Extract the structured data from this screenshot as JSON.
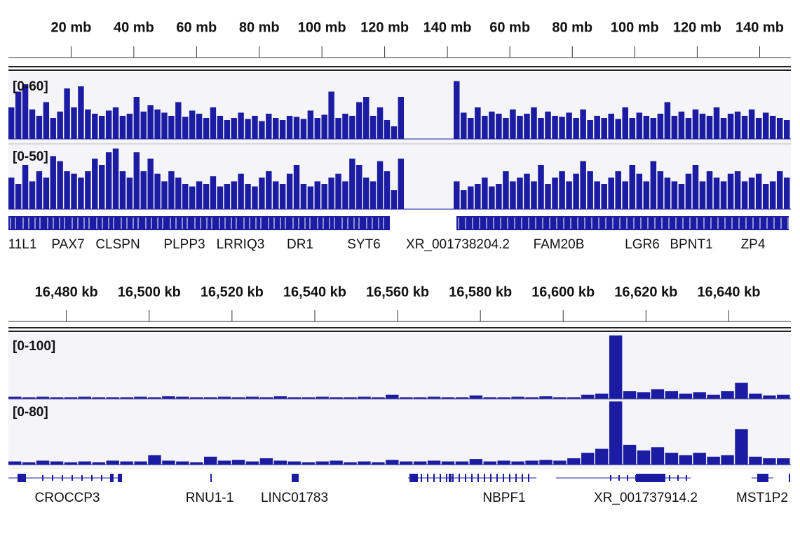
{
  "color": "#1c1ca3",
  "panels": [
    {
      "segments": [
        {
          "xlim": [
            0,
            142
          ],
          "xticks": [
            {
              "value": 20,
              "label": "20 mb"
            },
            {
              "value": 40,
              "label": "40 mb"
            },
            {
              "value": 60,
              "label": "60 mb"
            },
            {
              "value": 80,
              "label": "80 mb"
            },
            {
              "value": 100,
              "label": "100 mb"
            },
            {
              "value": 120,
              "label": "120 mb"
            },
            {
              "value": 140,
              "label": "140 mb"
            }
          ]
        },
        {
          "xlim": [
            42,
            150
          ],
          "xticks": [
            {
              "value": 60,
              "label": "60 mb"
            },
            {
              "value": 80,
              "label": "80 mb"
            },
            {
              "value": 100,
              "label": "100 mb"
            },
            {
              "value": 120,
              "label": "120 mb"
            },
            {
              "value": 140,
              "label": "140 mb"
            }
          ]
        }
      ],
      "tracks": [
        {
          "range_label": "[0-60]",
          "ylim": [
            0,
            60
          ],
          "values": [
            [
              30,
              45,
              52,
              28,
              22,
              35,
              20,
              26,
              48,
              30,
              50,
              28,
              24,
              22,
              27,
              30,
              22,
              24,
              40,
              26,
              32,
              28,
              25,
              22,
              35,
              21,
              27,
              24,
              20,
              30,
              22,
              18,
              20,
              25,
              19,
              22,
              17,
              24,
              20,
              18,
              22,
              21,
              19,
              27,
              20,
              23,
              45,
              20,
              24,
              22,
              35,
              40,
              22,
              30,
              18,
              12,
              40,
              0,
              0,
              0,
              0,
              0,
              0,
              0
            ],
            [
              55,
              25,
              20,
              30,
              22,
              26,
              24,
              20,
              28,
              22,
              24,
              30,
              20,
              26,
              22,
              21,
              25,
              20,
              28,
              18,
              22,
              20,
              24,
              19,
              30,
              20,
              25,
              22,
              20,
              24,
              35,
              22,
              26,
              20,
              28,
              24,
              22,
              30,
              20,
              24,
              26,
              22,
              28,
              20,
              25,
              22,
              20,
              18
            ]
          ]
        },
        {
          "range_label": "[0-50]",
          "ylim": [
            0,
            50
          ],
          "values": [
            [
              25,
              20,
              35,
              22,
              30,
              25,
              42,
              38,
              30,
              28,
              25,
              30,
              40,
              35,
              45,
              48,
              30,
              25,
              45,
              30,
              40,
              28,
              22,
              30,
              25,
              20,
              18,
              22,
              20,
              26,
              18,
              20,
              22,
              28,
              20,
              18,
              25,
              30,
              22,
              20,
              28,
              35,
              20,
              18,
              22,
              20,
              25,
              28,
              22,
              40,
              35,
              25,
              22,
              38,
              30,
              15,
              40,
              0,
              0,
              0,
              0,
              0,
              0,
              0
            ],
            [
              22,
              15,
              18,
              20,
              25,
              18,
              20,
              30,
              22,
              25,
              28,
              22,
              35,
              20,
              25,
              30,
              22,
              28,
              38,
              30,
              22,
              20,
              25,
              30,
              22,
              35,
              28,
              22,
              38,
              30,
              25,
              22,
              20,
              28,
              35,
              22,
              30,
              25,
              22,
              28,
              30,
              22,
              25,
              28,
              20,
              22,
              30,
              25
            ]
          ]
        }
      ],
      "genes": [
        "11L1",
        "PAX7",
        "CLSPN",
        "PLPP3",
        "LRRIQ3",
        "DR1",
        "SYT6",
        "XR_001738204.2",
        "FAM20B",
        "LGR6",
        "BPNT1",
        "ZP4"
      ]
    },
    {
      "segments": [
        {
          "xlim": [
            16466,
            16655
          ],
          "xticks": [
            {
              "value": 16480,
              "label": "16,480 kb"
            },
            {
              "value": 16500,
              "label": "16,500 kb"
            },
            {
              "value": 16520,
              "label": "16,520 kb"
            },
            {
              "value": 16540,
              "label": "16,540 kb"
            },
            {
              "value": 16560,
              "label": "16,560 kb"
            },
            {
              "value": 16580,
              "label": "16,580 kb"
            },
            {
              "value": 16600,
              "label": "16,600 kb"
            },
            {
              "value": 16620,
              "label": "16,620 kb"
            },
            {
              "value": 16640,
              "label": "16,640 kb"
            }
          ]
        }
      ],
      "tracks": [
        {
          "range_label": "[0-100]",
          "ylim": [
            0,
            100
          ],
          "values": [
            [
              3,
              2,
              3,
              2,
              2,
              3,
              2,
              2,
              2,
              3,
              2,
              4,
              3,
              2,
              2,
              3,
              2,
              3,
              2,
              4,
              2,
              2,
              3,
              2,
              2,
              3,
              2,
              6,
              2,
              2,
              3,
              2,
              2,
              5,
              2,
              2,
              3,
              2,
              4,
              2,
              2,
              6,
              8,
              100,
              12,
              10,
              15,
              12,
              8,
              10,
              6,
              12,
              25,
              8,
              5,
              6
            ]
          ]
        },
        {
          "range_label": "[0-80]",
          "ylim": [
            0,
            80
          ],
          "values": [
            [
              4,
              3,
              5,
              4,
              3,
              4,
              3,
              5,
              4,
              4,
              12,
              5,
              4,
              3,
              10,
              5,
              6,
              4,
              8,
              5,
              4,
              3,
              4,
              5,
              3,
              4,
              3,
              6,
              4,
              4,
              5,
              4,
              4,
              7,
              4,
              5,
              4,
              5,
              6,
              5,
              8,
              15,
              20,
              80,
              25,
              18,
              22,
              15,
              12,
              15,
              10,
              12,
              45,
              10,
              8,
              8
            ]
          ]
        }
      ],
      "genes": [
        "CROCCP3",
        "RNU1-1",
        "LINC01783",
        "NBPF1",
        "XR_001737914.2",
        "MST1P2"
      ]
    }
  ]
}
